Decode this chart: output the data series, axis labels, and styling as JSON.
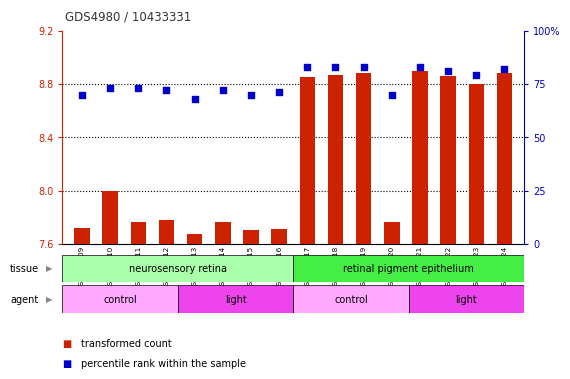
{
  "title": "GDS4980 / 10433331",
  "samples": [
    "GSM928109",
    "GSM928110",
    "GSM928111",
    "GSM928112",
    "GSM928113",
    "GSM928114",
    "GSM928115",
    "GSM928116",
    "GSM928117",
    "GSM928118",
    "GSM928119",
    "GSM928120",
    "GSM928121",
    "GSM928122",
    "GSM928123",
    "GSM928124"
  ],
  "transformed_count": [
    7.72,
    8.0,
    7.76,
    7.78,
    7.67,
    7.76,
    7.7,
    7.71,
    8.85,
    8.87,
    8.88,
    7.76,
    8.9,
    8.86,
    8.8,
    8.88
  ],
  "percentile_rank": [
    70,
    73,
    73,
    72,
    68,
    72,
    70,
    71,
    83,
    83,
    83,
    70,
    83,
    81,
    79,
    82
  ],
  "ylim_left": [
    7.6,
    9.2
  ],
  "ylim_right": [
    0,
    100
  ],
  "yticks_left": [
    7.6,
    8.0,
    8.4,
    8.8,
    9.2
  ],
  "yticks_right": [
    0,
    25,
    50,
    75,
    100
  ],
  "bar_color": "#cc2200",
  "dot_color": "#0000cc",
  "tissue_groups": [
    {
      "label": "neurosensory retina",
      "start": 0,
      "end": 8,
      "color": "#aaffaa"
    },
    {
      "label": "retinal pigment epithelium",
      "start": 8,
      "end": 16,
      "color": "#44ee44"
    }
  ],
  "agent_groups": [
    {
      "label": "control",
      "start": 0,
      "end": 4,
      "color": "#ffaaff"
    },
    {
      "label": "light",
      "start": 4,
      "end": 8,
      "color": "#ee44ee"
    },
    {
      "label": "control",
      "start": 8,
      "end": 12,
      "color": "#ffaaff"
    },
    {
      "label": "light",
      "start": 12,
      "end": 16,
      "color": "#ee44ee"
    }
  ],
  "legend_items": [
    {
      "label": "transformed count",
      "color": "#cc2200"
    },
    {
      "label": "percentile rank within the sample",
      "color": "#0000cc"
    }
  ],
  "title_color": "#333333",
  "left_axis_color": "#cc2200",
  "right_axis_color": "#0000cc",
  "gridline_values": [
    8.0,
    8.4,
    8.8
  ],
  "bg_color": "#ffffff"
}
